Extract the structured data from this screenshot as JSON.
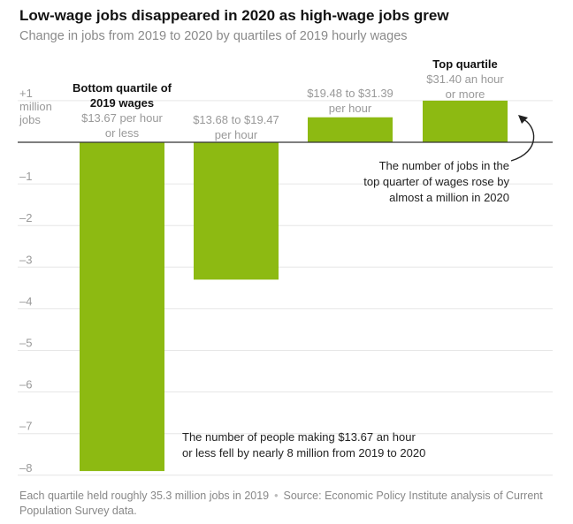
{
  "title": "Low-wage jobs disappeared in 2020 as high-wage jobs grew",
  "subtitle": "Change in jobs from 2019 to 2020 by quartiles of 2019 hourly wages",
  "chart_data": {
    "type": "bar",
    "categories": [
      "$13.67 per hour or less",
      "$13.68 to $19.47 per hour",
      "$19.48 to $31.39 per hour",
      "$31.40 an hour or more"
    ],
    "values": [
      -7.9,
      -3.3,
      0.6,
      1.0
    ],
    "unit": "million jobs",
    "ylim": [
      -8.2,
      1.0
    ],
    "yticks": [
      1,
      -1,
      -2,
      -3,
      -4,
      -5,
      -6,
      -7,
      -8
    ],
    "ytick_labels": {
      "1": "+1",
      "-1": "–1",
      "-2": "–2",
      "-3": "–3",
      "-4": "–4",
      "-5": "–5",
      "-6": "–6",
      "-7": "–7",
      "-8": "–8"
    },
    "ytop_unit_lines": [
      "million",
      "jobs"
    ],
    "bar_color": "#8dba12",
    "grid": true
  },
  "labels": [
    {
      "bold": "Bottom quartile of 2019 wages",
      "lines": [
        "$13.67 per hour",
        "or less"
      ]
    },
    {
      "bold": "",
      "lines": [
        "$13.68 to $19.47",
        "per hour"
      ]
    },
    {
      "bold": "",
      "lines": [
        "$19.48 to $31.39",
        "per hour"
      ]
    },
    {
      "bold": "Top quartile",
      "lines": [
        "$31.40 an hour",
        "or more"
      ]
    }
  ],
  "annotations": {
    "top": [
      "The number of jobs in the",
      "top quarter of wages rose by",
      "almost a million in 2020"
    ],
    "bottom": [
      "The number of people making $13.67 an hour",
      "or less fell by nearly 8 million from 2019 to 2020"
    ]
  },
  "footer": {
    "note": "Each quartile held roughly 35.3 million jobs in 2019",
    "separator": "•",
    "source": "Source: Economic Policy Institute analysis of Current Population Survey data."
  }
}
